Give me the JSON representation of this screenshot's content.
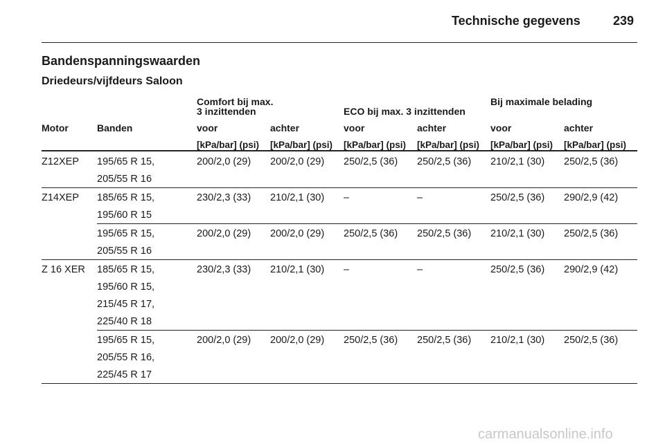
{
  "header": {
    "title": "Technische gegevens",
    "page": "239"
  },
  "section": {
    "title": "Bandenspanningswaarden",
    "subtitle": "Driedeurs/vijfdeurs Saloon"
  },
  "table": {
    "group_headers": [
      "Comfort bij max. 3 inzittenden",
      "ECO bij max. 3 inzittenden",
      "Bij maximale belading"
    ],
    "columns": [
      "Motor",
      "Banden",
      "voor",
      "achter",
      "voor",
      "achter",
      "voor",
      "achter"
    ],
    "units": [
      "[kPa/bar] (psi)",
      "[kPa/bar] (psi)",
      "[kPa/bar] (psi)",
      "[kPa/bar] (psi)",
      "[kPa/bar] (psi)",
      "[kPa/bar] (psi)"
    ],
    "groups": [
      {
        "motor": "Z12XEP",
        "rows": [
          {
            "tyres": [
              "195/65 R 15,",
              "205/55 R 16"
            ],
            "values": [
              "200/2,0 (29)",
              "200/2,0 (29)",
              "250/2,5 (36)",
              "250/2,5 (36)",
              "210/2,1 (30)",
              "250/2,5 (36)"
            ]
          }
        ]
      },
      {
        "motor": "Z14XEP",
        "rows": [
          {
            "tyres": [
              "185/65 R 15,",
              "195/60 R 15"
            ],
            "values": [
              "230/2,3 (33)",
              "210/2,1 (30)",
              "–",
              "–",
              "250/2,5 (36)",
              "290/2,9 (42)"
            ]
          },
          {
            "tyres": [
              "195/65 R 15,",
              "205/55 R 16"
            ],
            "values": [
              "200/2,0 (29)",
              "200/2,0 (29)",
              "250/2,5 (36)",
              "250/2,5 (36)",
              "210/2,1 (30)",
              "250/2,5 (36)"
            ]
          }
        ]
      },
      {
        "motor": "Z 16 XER",
        "rows": [
          {
            "tyres": [
              "185/65 R 15,",
              "195/60 R 15,",
              "215/45 R 17,",
              "225/40 R 18"
            ],
            "values": [
              "230/2,3 (33)",
              "210/2,1 (30)",
              "–",
              "–",
              "250/2,5 (36)",
              "290/2,9 (42)"
            ]
          },
          {
            "tyres": [
              "195/65 R 15,",
              "205/55 R 16,",
              "225/45 R 17"
            ],
            "values": [
              "200/2,0 (29)",
              "200/2,0 (29)",
              "250/2,5 (36)",
              "250/2,5 (36)",
              "210/2,1 (30)",
              "250/2,5 (36)"
            ]
          }
        ]
      }
    ]
  },
  "watermark": "carmanualsonline.info"
}
